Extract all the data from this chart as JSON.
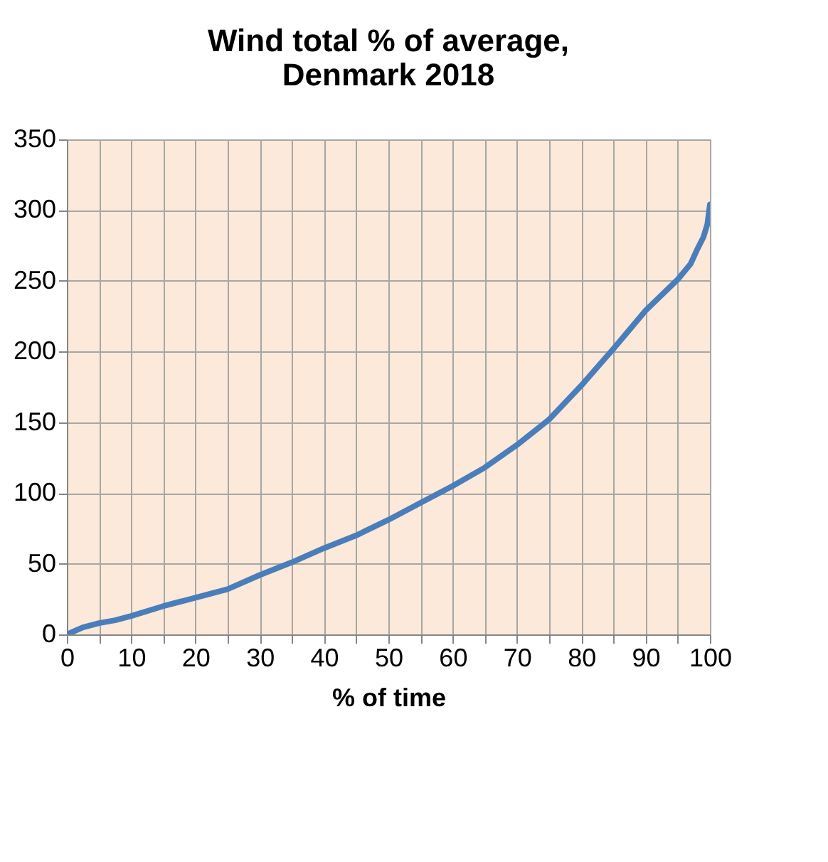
{
  "chart_data": {
    "type": "line",
    "title": [
      "Wind total % of average,",
      "Denmark 2018"
    ],
    "xlabel": "% of time",
    "x": [
      0,
      1,
      2.5,
      5,
      7.5,
      10,
      15,
      20,
      25,
      30,
      35,
      40,
      45,
      50,
      55,
      60,
      65,
      70,
      75,
      80,
      85,
      90,
      95,
      97,
      98,
      99,
      99.6,
      100
    ],
    "series": [
      {
        "color": "#4a7ebb",
        "values": [
          0,
          2,
          5,
          8,
          10,
          13,
          20,
          26,
          32,
          42,
          51,
          61,
          70,
          81,
          93,
          105,
          118,
          134,
          152,
          176,
          202,
          229,
          251,
          262,
          272,
          281,
          290,
          304
        ]
      }
    ],
    "xlim": [
      0,
      100
    ],
    "ylim": [
      0,
      350
    ],
    "xticks": [
      0,
      {
        "value": 5,
        "label": null
      },
      10,
      {
        "value": 15,
        "label": null
      },
      20,
      {
        "value": 25,
        "label": null
      },
      30,
      {
        "value": 35,
        "label": null
      },
      40,
      {
        "value": 45,
        "label": null
      },
      50,
      {
        "value": 55,
        "label": null
      },
      60,
      {
        "value": 65,
        "label": null
      },
      70,
      {
        "value": 75,
        "label": null
      },
      80,
      {
        "value": 85,
        "label": null
      },
      90,
      {
        "value": 95,
        "label": null
      },
      100
    ],
    "yticks": [
      0,
      50,
      100,
      150,
      200,
      250,
      300,
      350
    ],
    "grid": true,
    "marker": "none",
    "line_style": "solid"
  }
}
